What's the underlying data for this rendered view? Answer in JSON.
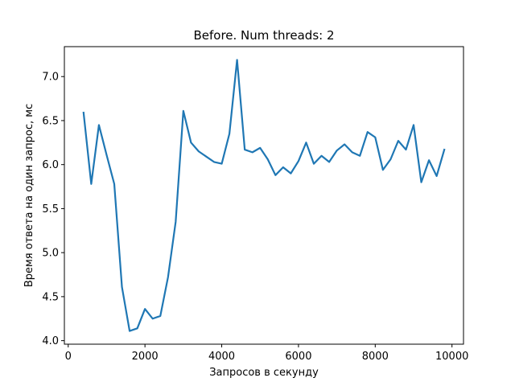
{
  "chart_data": {
    "type": "line",
    "title": "Before. Num threads: 2",
    "xlabel": "Запросов в секунду",
    "ylabel": "Время ответа на один запрос, мс",
    "xlim": [
      -100,
      10300
    ],
    "ylim": [
      3.96,
      7.34
    ],
    "xticks": [
      0,
      2000,
      4000,
      6000,
      8000,
      10000
    ],
    "xtick_labels": [
      "0",
      "2000",
      "4000",
      "6000",
      "8000",
      "10000"
    ],
    "yticks": [
      4.0,
      4.5,
      5.0,
      5.5,
      6.0,
      6.5,
      7.0
    ],
    "ytick_labels": [
      "4.0",
      "4.5",
      "5.0",
      "5.5",
      "6.0",
      "6.5",
      "7.0"
    ],
    "grid": false,
    "line_color": "#1f77b4",
    "series": [
      {
        "x": [
          400,
          600,
          800,
          1000,
          1200,
          1400,
          1600,
          1800,
          2000,
          2200,
          2400,
          2600,
          2800,
          3000,
          3200,
          3400,
          3600,
          3800,
          4000,
          4200,
          4400,
          4600,
          4800,
          5000,
          5200,
          5400,
          5600,
          5800,
          6000,
          6200,
          6400,
          6600,
          6800,
          7000,
          7200,
          7400,
          7600,
          7800,
          8000,
          8200,
          8400,
          8600,
          8800,
          9000,
          9200,
          9400,
          9600,
          9800
        ],
        "values": [
          6.59,
          5.78,
          6.45,
          6.11,
          5.78,
          4.61,
          4.11,
          4.14,
          4.36,
          4.25,
          4.28,
          4.72,
          5.35,
          6.61,
          6.25,
          6.15,
          6.09,
          6.03,
          6.01,
          6.35,
          7.19,
          6.17,
          6.14,
          6.19,
          6.06,
          5.88,
          5.97,
          5.9,
          6.04,
          6.25,
          6.01,
          6.1,
          6.03,
          6.16,
          6.23,
          6.14,
          6.1,
          6.37,
          6.31,
          5.94,
          6.06,
          6.27,
          6.17,
          6.45,
          5.8,
          6.05,
          5.87,
          6.17
        ]
      }
    ]
  }
}
